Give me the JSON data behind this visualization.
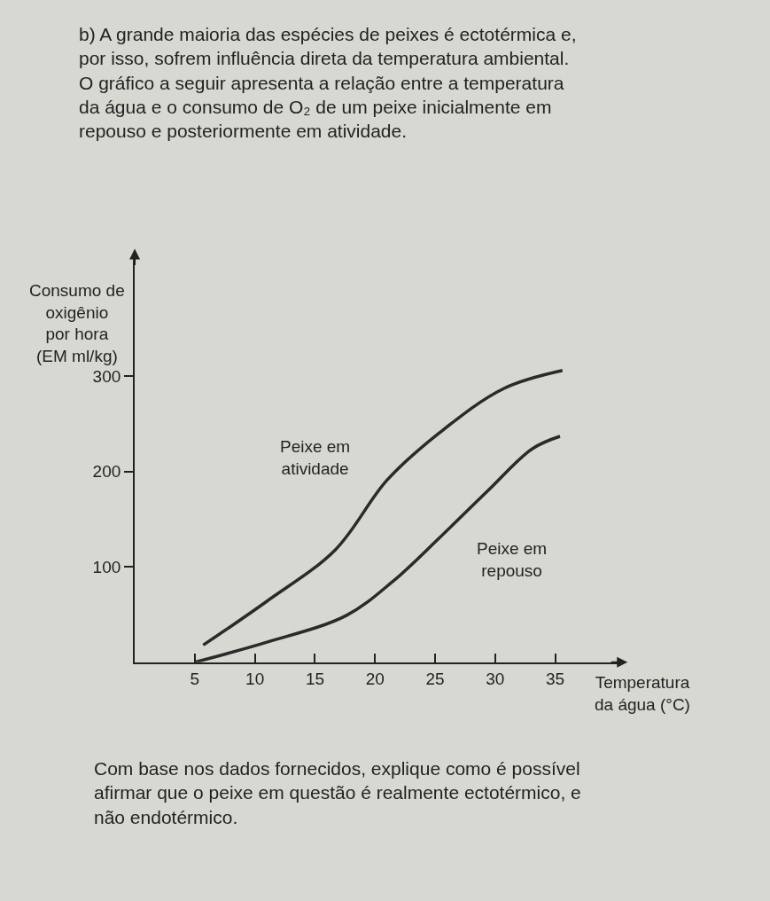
{
  "chart_data": {
    "type": "line",
    "title": "b) A grande maioria das espécies de peixes é ectotérmica e, por isso, sofrem influência direta da temperatura ambiental. O gráfico a seguir apresenta a relação entre a temperatura da água e o consumo de O₂ de um peixe inicialmente em repouso e posteriormente em atividade.",
    "ylabel": "Consumo de\noxigênio\npor hora\n(EM ml/kg)",
    "xlabel": "Temperatura\nda água (°C)",
    "annotations": [
      "Com base nos dados fornecidos, explique como é possível afirmar que o peixe em questão é realmente ectotérmico, e não endotérmico."
    ],
    "series": [
      {
        "name": "Peixe em\natividade",
        "color": "#2a2a2a",
        "x": [
          5.7,
          11,
          16.7,
          21,
          25.4,
          30.7,
          35.6
        ],
        "values": [
          18,
          64,
          118,
          191,
          241,
          287,
          306
        ]
      },
      {
        "name": "Peixe em\nrepouso",
        "color": "#2a2a2a",
        "x": [
          5,
          11,
          17.6,
          21.5,
          25.4,
          29.4,
          33.1,
          35.4
        ],
        "values": [
          0,
          21,
          49,
          85,
          131,
          180,
          224,
          237
        ]
      }
    ],
    "xlim": [
      0,
      40.7
    ],
    "ylim": [
      0,
      430
    ],
    "xticks": [
      5,
      10,
      15,
      20,
      25,
      30,
      35
    ],
    "yticks": [
      100,
      200,
      300
    ],
    "grid": false,
    "legend": false,
    "marker": "none",
    "line_style": "solid"
  }
}
